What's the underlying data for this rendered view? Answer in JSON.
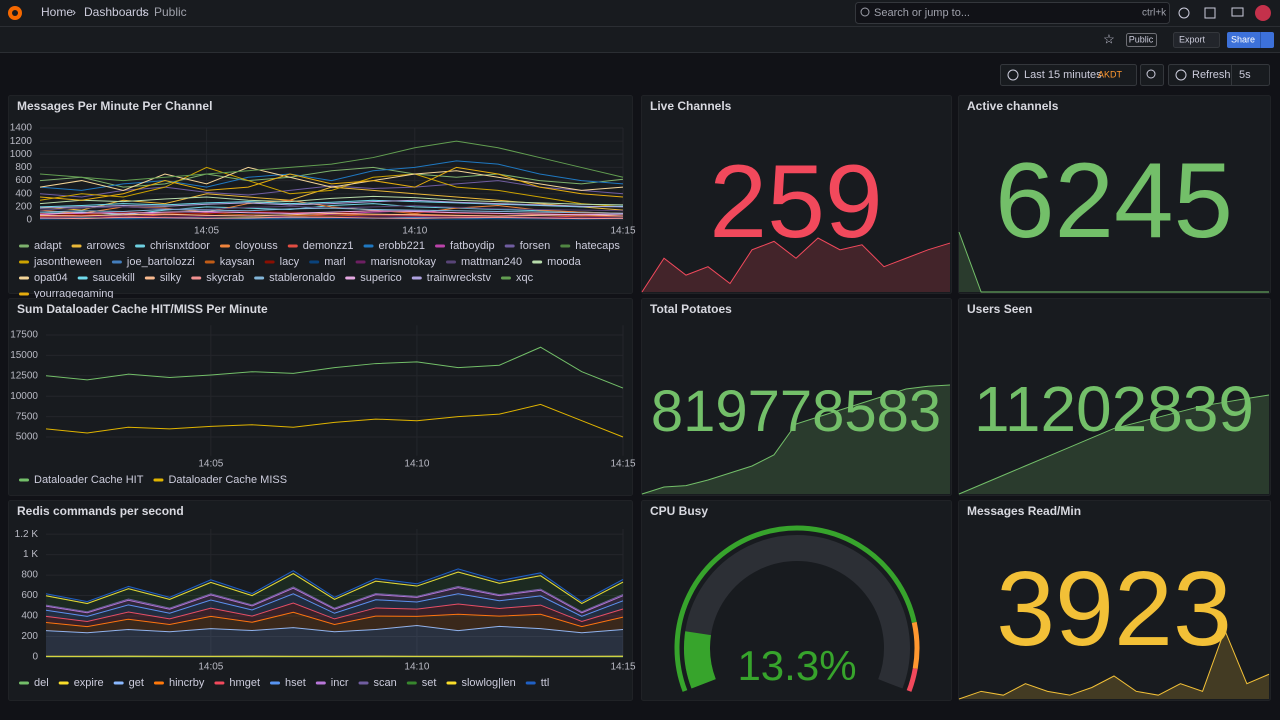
{
  "header": {
    "breadcrumbs": [
      "Home",
      "Dashboards",
      "Public"
    ],
    "search": "Search or jump to...",
    "shortcut": "ctrl+k",
    "badge": "Public",
    "export": "Export",
    "share": "Share"
  },
  "toolbar": {
    "time_range": "Last 15 minutes",
    "timezone": "AKDT",
    "refresh": "Refresh",
    "interval": "5s"
  },
  "chart_data": [
    {
      "type": "timeseries",
      "title": "Messages Per Minute Per Channel",
      "grid": true,
      "x": [
        "14:01",
        "14:02",
        "14:03",
        "14:04",
        "14:05",
        "14:06",
        "14:07",
        "14:08",
        "14:09",
        "14:10",
        "14:11",
        "14:12",
        "14:13",
        "14:14",
        "14:15"
      ],
      "xlim": [
        "14:01",
        "14:15"
      ],
      "xticks": [
        "14:05",
        "14:10",
        "14:15"
      ],
      "ylim": [
        0,
        1400
      ],
      "yticks": [
        0,
        200,
        400,
        600,
        800,
        1000,
        1200,
        1400
      ],
      "series": [
        {
          "name": "adapt",
          "color": "#7eb26d",
          "values": [
            600,
            650,
            500,
            550,
            700,
            600,
            650,
            750,
            800,
            700,
            650,
            700,
            600,
            550,
            620
          ]
        },
        {
          "name": "arrowcs",
          "color": "#eab839",
          "values": [
            200,
            150,
            300,
            250,
            400,
            350,
            300,
            500,
            450,
            400,
            350,
            300,
            250,
            200,
            150
          ]
        },
        {
          "name": "chrisnxtdoor",
          "color": "#6ed0e0",
          "values": [
            100,
            120,
            80,
            150,
            200,
            180,
            160,
            220,
            250,
            200,
            180,
            160,
            140,
            120,
            100
          ]
        },
        {
          "name": "cloyouss",
          "color": "#ef843c",
          "values": [
            150,
            100,
            200,
            180,
            120,
            250,
            300,
            200,
            150,
            100,
            180,
            220,
            150,
            120,
            100
          ]
        },
        {
          "name": "demonzz1",
          "color": "#e24d42",
          "values": [
            50,
            60,
            40,
            80,
            70,
            60,
            50,
            90,
            80,
            70,
            60,
            50,
            40,
            60,
            50
          ]
        },
        {
          "name": "erobb221",
          "color": "#1f78c1",
          "values": [
            500,
            450,
            550,
            600,
            500,
            650,
            700,
            600,
            750,
            800,
            900,
            850,
            700,
            600,
            550
          ]
        },
        {
          "name": "fatboydip",
          "color": "#ba43a9",
          "values": [
            80,
            100,
            120,
            90,
            110,
            130,
            100,
            90,
            120,
            140,
            110,
            100,
            90,
            80,
            100
          ]
        },
        {
          "name": "forsen",
          "color": "#705da0",
          "values": [
            400,
            350,
            450,
            500,
            420,
            380,
            450,
            520,
            480,
            500,
            550,
            600,
            500,
            450,
            400
          ]
        },
        {
          "name": "hatecaps",
          "color": "#508642",
          "values": [
            30,
            40,
            20,
            50,
            30,
            40,
            60,
            30,
            20,
            40,
            50,
            30,
            20,
            40,
            30
          ]
        },
        {
          "name": "jasontheween",
          "color": "#cca300",
          "values": [
            300,
            400,
            350,
            500,
            800,
            600,
            400,
            450,
            650,
            700,
            500,
            450,
            350,
            250,
            200
          ]
        },
        {
          "name": "joe_bartolozzi",
          "color": "#447ebc",
          "values": [
            20,
            30,
            25,
            40,
            30,
            20,
            35,
            30,
            25,
            40,
            30,
            20,
            25,
            30,
            20
          ]
        },
        {
          "name": "kaysan",
          "color": "#c15c17",
          "values": [
            60,
            80,
            70,
            90,
            100,
            80,
            70,
            60,
            80,
            90,
            70,
            60,
            80,
            70,
            60
          ]
        },
        {
          "name": "lacy",
          "color": "#890f02",
          "values": [
            100,
            80,
            120,
            110,
            90,
            130,
            120,
            100,
            140,
            120,
            100,
            90,
            110,
            100,
            90
          ]
        },
        {
          "name": "marl",
          "color": "#0a437c",
          "values": [
            10,
            20,
            15,
            25,
            20,
            10,
            15,
            20,
            25,
            15,
            10,
            20,
            15,
            10,
            20
          ]
        },
        {
          "name": "marisnotokay",
          "color": "#6d1f62",
          "values": [
            40,
            50,
            60,
            45,
            55,
            70,
            50,
            40,
            60,
            55,
            45,
            50,
            40,
            35,
            45
          ]
        },
        {
          "name": "mattman240",
          "color": "#584477",
          "values": [
            150,
            180,
            200,
            170,
            160,
            190,
            210,
            180,
            200,
            220,
            190,
            170,
            160,
            150,
            140
          ]
        },
        {
          "name": "mooda",
          "color": "#b7dbab",
          "values": [
            250,
            300,
            280,
            320,
            350,
            300,
            280,
            330,
            360,
            340,
            300,
            280,
            260,
            240,
            230
          ]
        },
        {
          "name": "opat04",
          "color": "#f4d598",
          "values": [
            500,
            600,
            450,
            700,
            550,
            800,
            650,
            500,
            600,
            700,
            750,
            650,
            550,
            450,
            500
          ]
        },
        {
          "name": "saucekill",
          "color": "#70dbed",
          "values": [
            200,
            220,
            250,
            230,
            260,
            280,
            250,
            270,
            300,
            280,
            260,
            240,
            220,
            200,
            210
          ]
        },
        {
          "name": "silky",
          "color": "#f9ba8f",
          "values": [
            70,
            60,
            80,
            90,
            70,
            60,
            80,
            100,
            90,
            80,
            70,
            60,
            70,
            80,
            60
          ]
        },
        {
          "name": "skycrab",
          "color": "#f29191",
          "values": [
            30,
            20,
            40,
            35,
            25,
            30,
            45,
            40,
            30,
            25,
            35,
            40,
            30,
            20,
            25
          ]
        },
        {
          "name": "stableronaldo",
          "color": "#82b5d8",
          "values": [
            120,
            140,
            130,
            160,
            150,
            140,
            170,
            180,
            160,
            150,
            140,
            130,
            120,
            110,
            100
          ]
        },
        {
          "name": "superico",
          "color": "#e5a8e2",
          "values": [
            90,
            110,
            100,
            120,
            130,
            110,
            100,
            120,
            140,
            130,
            110,
            100,
            90,
            80,
            90
          ]
        },
        {
          "name": "trainwreckstv",
          "color": "#aea2e0",
          "values": [
            180,
            200,
            220,
            210,
            240,
            260,
            230,
            250,
            280,
            300,
            270,
            250,
            230,
            210,
            200
          ]
        },
        {
          "name": "xqc",
          "color": "#629e51",
          "values": [
            700,
            650,
            600,
            650,
            700,
            750,
            800,
            850,
            950,
            1100,
            1200,
            1100,
            950,
            800,
            650
          ]
        },
        {
          "name": "yourragegaming",
          "color": "#e5ac0e",
          "values": [
            350,
            300,
            400,
            600,
            450,
            500,
            700,
            550,
            600,
            500,
            800,
            700,
            500,
            400,
            350
          ]
        }
      ]
    },
    {
      "type": "stat",
      "title": "Live Channels",
      "value": 259,
      "color": "#f2495c",
      "sparkline": [
        230,
        250,
        240,
        245,
        235,
        255,
        260,
        250,
        262,
        255,
        258,
        245,
        250,
        255,
        259
      ]
    },
    {
      "type": "stat",
      "title": "Active channels",
      "value": 6245,
      "color": "#73bf69",
      "sparkline": [
        6400,
        6245,
        6245,
        6245,
        6245,
        6245,
        6245,
        6245,
        6245,
        6245,
        6245,
        6245,
        6245,
        6245,
        6245
      ]
    },
    {
      "type": "timeseries",
      "title": "Sum Dataloader Cache HIT/MISS Per Minute",
      "grid": true,
      "x": [
        "14:01",
        "14:02",
        "14:03",
        "14:04",
        "14:05",
        "14:06",
        "14:07",
        "14:08",
        "14:09",
        "14:10",
        "14:11",
        "14:12",
        "14:13",
        "14:14",
        "14:15"
      ],
      "xlim": [
        "14:01",
        "14:15"
      ],
      "xticks": [
        "14:05",
        "14:10",
        "14:15"
      ],
      "ylim": [
        2700,
        18700
      ],
      "yticks": [
        5000,
        7500,
        10000,
        12500,
        15000,
        17500
      ],
      "series": [
        {
          "name": "Dataloader Cache HIT",
          "color": "#73bf69",
          "values": [
            12500,
            12000,
            12700,
            12300,
            12600,
            13000,
            12800,
            13500,
            14000,
            14200,
            13500,
            13800,
            16000,
            13000,
            11000
          ]
        },
        {
          "name": "Dataloader Cache MISS",
          "color": "#e0b400",
          "values": [
            6000,
            5500,
            6200,
            6000,
            6300,
            6500,
            6200,
            6800,
            7200,
            7000,
            7500,
            7800,
            9000,
            7000,
            5000
          ]
        }
      ]
    },
    {
      "type": "stat",
      "title": "Total Potatoes",
      "value": 819778583,
      "color": "#73bf69",
      "sparkline": [
        819000000,
        819050000,
        819060000,
        819100000,
        819150000,
        819200000,
        819280000,
        819500000,
        819550000,
        819600000,
        819650000,
        819700000,
        819750000,
        819770000,
        819778583
      ]
    },
    {
      "type": "stat",
      "title": "Users Seen",
      "value": 11202839,
      "color": "#73bf69",
      "sparkline": [
        11150000,
        11155000,
        11160000,
        11165000,
        11170000,
        11175000,
        11180000,
        11185000,
        11188000,
        11191000,
        11194000,
        11197000,
        11199000,
        11201000,
        11202839
      ]
    },
    {
      "type": "timeseries",
      "title": "Redis commands per second",
      "grid": true,
      "stacked": true,
      "x": [
        "14:01",
        "14:02",
        "14:03",
        "14:04",
        "14:05",
        "14:06",
        "14:07",
        "14:08",
        "14:09",
        "14:10",
        "14:11",
        "14:12",
        "14:13",
        "14:14",
        "14:15"
      ],
      "xlim": [
        "14:01",
        "14:15"
      ],
      "xticks": [
        "14:05",
        "14:10",
        "14:15"
      ],
      "ylim": [
        0,
        1250
      ],
      "yticks": [
        0,
        200,
        400,
        600,
        800,
        {
          "value": 1000,
          "label": "1 K"
        },
        {
          "value": 1200,
          "label": "1.2 K"
        }
      ],
      "series": [
        {
          "name": "del",
          "color": "#73bf69",
          "values": [
            2,
            2,
            3,
            2,
            2,
            3,
            2,
            2,
            3,
            2,
            2,
            3,
            2,
            2,
            3
          ]
        },
        {
          "name": "expire",
          "color": "#fade2a",
          "values": [
            5,
            5,
            6,
            5,
            5,
            6,
            5,
            5,
            6,
            5,
            5,
            6,
            5,
            5,
            6
          ]
        },
        {
          "name": "get",
          "color": "#8ab8ff",
          "values": [
            250,
            230,
            260,
            240,
            270,
            250,
            280,
            240,
            260,
            300,
            250,
            290,
            270,
            230,
            260
          ]
        },
        {
          "name": "hincrby",
          "color": "#ff780a",
          "values": [
            80,
            60,
            100,
            70,
            120,
            80,
            150,
            70,
            130,
            90,
            160,
            100,
            140,
            60,
            120
          ]
        },
        {
          "name": "hmget",
          "color": "#f2495c",
          "values": [
            60,
            50,
            70,
            55,
            80,
            60,
            90,
            55,
            80,
            70,
            100,
            75,
            90,
            50,
            80
          ]
        },
        {
          "name": "hset",
          "color": "#5794f2",
          "values": [
            60,
            50,
            70,
            55,
            80,
            60,
            90,
            55,
            80,
            70,
            100,
            75,
            90,
            50,
            80
          ]
        },
        {
          "name": "incr",
          "color": "#b877d9",
          "values": [
            40,
            35,
            45,
            40,
            50,
            40,
            55,
            40,
            50,
            45,
            60,
            50,
            55,
            35,
            50
          ]
        },
        {
          "name": "scan",
          "color": "#705da0",
          "values": [
            10,
            10,
            12,
            10,
            11,
            10,
            12,
            10,
            11,
            10,
            12,
            10,
            11,
            10,
            12
          ]
        },
        {
          "name": "set",
          "color": "#37872d",
          "values": [
            90,
            80,
            100,
            85,
            110,
            90,
            130,
            85,
            120,
            100,
            140,
            110,
            130,
            80,
            120
          ]
        },
        {
          "name": "slowlog|len",
          "color": "#fade2a",
          "values": [
            1,
            1,
            1,
            1,
            1,
            1,
            1,
            1,
            1,
            1,
            1,
            1,
            1,
            1,
            1
          ]
        },
        {
          "name": "ttl",
          "color": "#1f60c4",
          "values": [
            20,
            18,
            22,
            20,
            25,
            20,
            28,
            20,
            25,
            22,
            30,
            25,
            28,
            18,
            25
          ]
        }
      ]
    },
    {
      "type": "gauge",
      "title": "CPU Busy",
      "values": [
        13.3
      ],
      "value_labels": [
        "13.3%"
      ],
      "ylim": [
        0,
        100
      ],
      "color": "#37a42c",
      "thresholds": [
        {
          "value": 0,
          "color": "#37a42c"
        },
        {
          "value": 85,
          "color": "#ff9830"
        },
        {
          "value": 95,
          "color": "#f2495c"
        }
      ]
    },
    {
      "type": "stat",
      "title": "Messages Read/Min",
      "value": 3923,
      "color": "#f2c037",
      "sparkline": [
        3600,
        3700,
        3650,
        3800,
        3700,
        3650,
        3750,
        3900,
        3700,
        3650,
        3800,
        3700,
        4500,
        3800,
        3923
      ]
    }
  ]
}
